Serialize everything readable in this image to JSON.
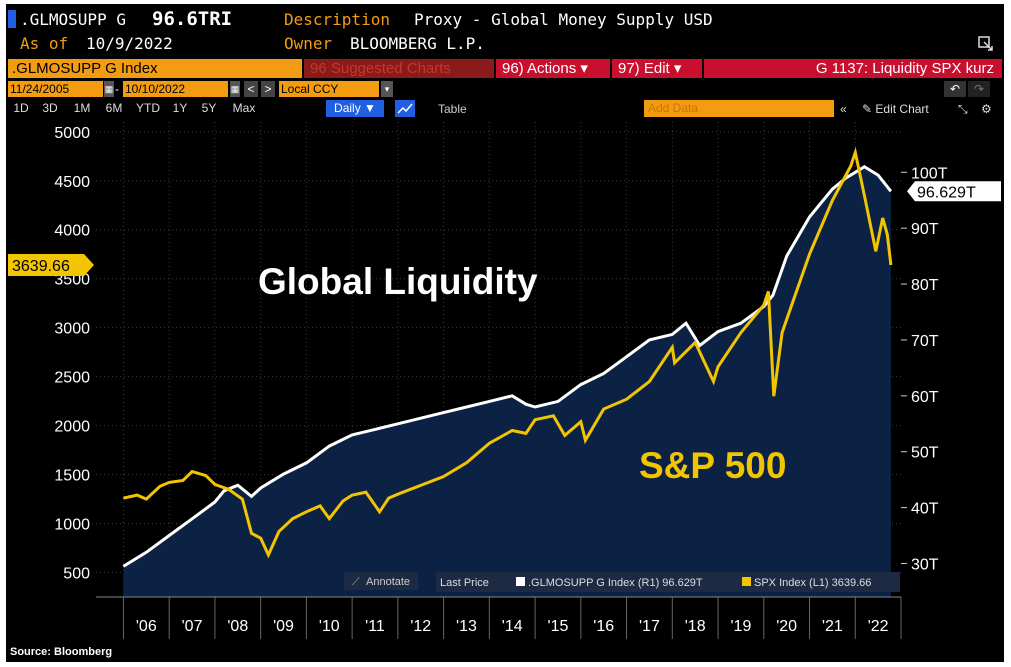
{
  "header": {
    "ticker": ".GLMOSUPP G",
    "value": "96.6TRI",
    "desc_label": "Description",
    "desc_value": "Proxy - Global Money Supply USD",
    "asof_label": "As of",
    "asof_value": "10/9/2022",
    "owner_label": "Owner",
    "owner_value": "BLOOMBERG L.P.",
    "expand_icon": "expand-icon"
  },
  "toolbar": {
    "security": ".GLMOSUPP G Index",
    "suggested": "96 Suggested Charts",
    "actions": "96) Actions ▾",
    "edit": "97) Edit ▾",
    "chart_title": "G 1137: Liquidity SPX kurz",
    "start_date": "11/24/2005",
    "end_date": "10/10/2022",
    "currency": "Local CCY",
    "add_data": "Add Data",
    "edit_chart": "Edit Chart",
    "periods": [
      "1D",
      "3D",
      "1M",
      "6M",
      "YTD",
      "1Y",
      "5Y",
      "Max"
    ],
    "frequency": "Daily ▼",
    "table": "Table"
  },
  "annotations": {
    "global_liquidity": "Global Liquidity",
    "sp500": "S&P 500",
    "annotate": "Annotate",
    "source": "Source: Bloomberg"
  },
  "legend": {
    "last_price": "Last Price",
    "series1": ".GLMOSUPP G Index  (R1) 96.629T",
    "series2": "SPX Index  (L1) 3639.66"
  },
  "colors": {
    "background": "#000000",
    "plot_fill": "#0b2244",
    "spx": "#f2c500",
    "liquidity": "#ffffff",
    "orange": "#f39c12",
    "red_bar": "#c8102e"
  },
  "chart_data": {
    "type": "line",
    "x_tick_labels": [
      "'06",
      "'07",
      "'08",
      "'09",
      "'10",
      "'11",
      "'12",
      "'13",
      "'14",
      "'15",
      "'16",
      "'17",
      "'18",
      "'19",
      "'20",
      "'21",
      "'22"
    ],
    "left_axis": {
      "ticks": [
        500,
        1000,
        1500,
        2000,
        2500,
        3000,
        3500,
        4000,
        4500,
        5000
      ],
      "range": [
        250,
        5100
      ],
      "last_label": "3639.66"
    },
    "right_axis": {
      "ticks": [
        "30T",
        "40T",
        "50T",
        "60T",
        "70T",
        "80T",
        "90T",
        "100T"
      ],
      "range": [
        24,
        109
      ],
      "last_label": "96.629T"
    },
    "series": [
      {
        "name": ".GLMOSUPP G Index",
        "axis": "right",
        "x": [
          2006.0,
          2006.5,
          2007.0,
          2007.5,
          2008.0,
          2008.2,
          2008.5,
          2008.8,
          2009.0,
          2009.5,
          2010.0,
          2010.5,
          2011.0,
          2011.5,
          2012.0,
          2012.5,
          2013.0,
          2013.5,
          2014.0,
          2014.5,
          2014.8,
          2015.0,
          2015.5,
          2016.0,
          2016.5,
          2017.0,
          2017.5,
          2018.0,
          2018.3,
          2018.6,
          2019.0,
          2019.5,
          2020.0,
          2020.2,
          2020.5,
          2021.0,
          2021.5,
          2021.8,
          2022.0,
          2022.2,
          2022.5,
          2022.78
        ],
        "y": [
          29.5,
          32,
          35,
          38,
          41,
          43,
          44,
          42,
          43.5,
          46,
          48,
          51,
          53,
          54,
          55,
          56,
          57,
          58,
          59,
          60,
          58.5,
          58,
          59,
          62,
          64,
          67,
          70,
          71,
          73,
          69,
          71.5,
          73,
          76,
          78,
          85,
          92,
          97,
          99,
          100,
          101,
          99.5,
          96.6
        ]
      },
      {
        "name": "SPX Index",
        "axis": "left",
        "x": [
          2006.0,
          2006.3,
          2006.5,
          2006.8,
          2007.0,
          2007.3,
          2007.5,
          2007.8,
          2008.0,
          2008.3,
          2008.6,
          2008.8,
          2009.0,
          2009.17,
          2009.4,
          2009.7,
          2010.0,
          2010.3,
          2010.5,
          2010.8,
          2011.0,
          2011.3,
          2011.6,
          2011.8,
          2012.0,
          2012.5,
          2013.0,
          2013.5,
          2014.0,
          2014.5,
          2014.8,
          2015.0,
          2015.4,
          2015.65,
          2016.0,
          2016.1,
          2016.5,
          2017.0,
          2017.5,
          2018.0,
          2018.05,
          2018.5,
          2018.9,
          2019.0,
          2019.5,
          2020.0,
          2020.1,
          2020.22,
          2020.4,
          2020.7,
          2021.0,
          2021.5,
          2021.9,
          2022.0,
          2022.2,
          2022.45,
          2022.6,
          2022.7,
          2022.78
        ],
        "y": [
          1260,
          1290,
          1250,
          1380,
          1420,
          1440,
          1530,
          1490,
          1400,
          1350,
          1250,
          900,
          850,
          680,
          920,
          1050,
          1120,
          1180,
          1050,
          1230,
          1290,
          1320,
          1120,
          1260,
          1300,
          1390,
          1480,
          1620,
          1820,
          1950,
          1920,
          2060,
          2100,
          1900,
          2040,
          1850,
          2170,
          2270,
          2450,
          2800,
          2640,
          2850,
          2450,
          2600,
          2950,
          3230,
          3370,
          2300,
          2950,
          3350,
          3750,
          4300,
          4650,
          4790,
          4350,
          3780,
          4120,
          3950,
          3640
        ]
      }
    ]
  }
}
